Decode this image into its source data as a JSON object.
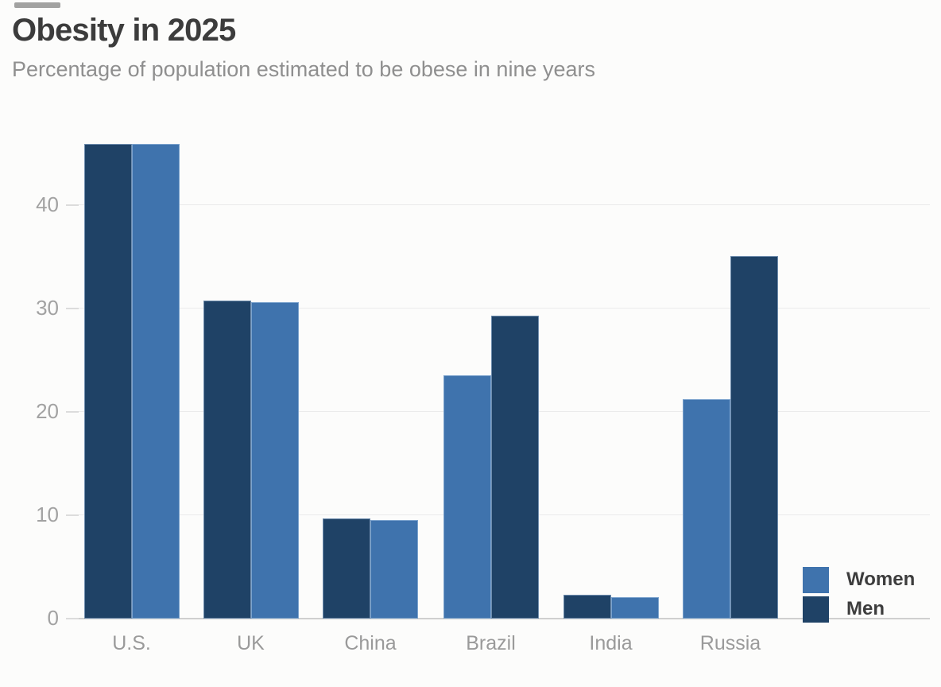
{
  "chart_data": {
    "type": "bar",
    "title": "Obesity in 2025",
    "subtitle": "Percentage of population estimated to be obese in nine years",
    "categories": [
      "U.S.",
      "UK",
      "China",
      "Brazil",
      "India",
      "Russia"
    ],
    "series": [
      {
        "name": "Women",
        "color": "#3F73AD",
        "values": [
          45.9,
          30.6,
          9.5,
          23.5,
          2.1,
          21.2
        ]
      },
      {
        "name": "Men",
        "color": "#1F4266",
        "values": [
          45.9,
          30.8,
          9.7,
          29.3,
          2.3,
          35.1
        ]
      }
    ],
    "bar_order": [
      [
        "Men",
        "Women"
      ],
      [
        "Men",
        "Women"
      ],
      [
        "Men",
        "Women"
      ],
      [
        "Women",
        "Men"
      ],
      [
        "Men",
        "Women"
      ],
      [
        "Women",
        "Men"
      ]
    ],
    "xlabel": "",
    "ylabel": "",
    "yticks": [
      0,
      10,
      20,
      30,
      40
    ],
    "ylim": [
      0,
      48
    ],
    "grid": true,
    "legend": {
      "position": "bottom-right",
      "entries": [
        "Women",
        "Men"
      ]
    }
  }
}
